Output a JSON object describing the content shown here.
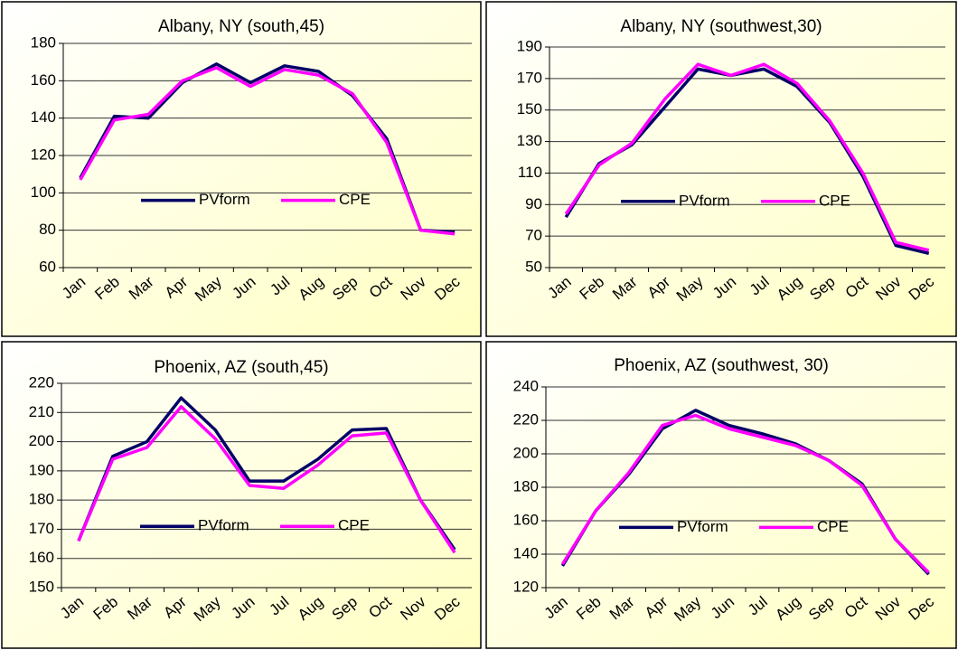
{
  "chart_data": [
    {
      "type": "line",
      "title": "Albany, NY (south,45)",
      "categories": [
        "Jan",
        "Feb",
        "Mar",
        "Apr",
        "May",
        "Jun",
        "Jul",
        "Aug",
        "Sep",
        "Oct",
        "Nov",
        "Dec"
      ],
      "series": [
        {
          "name": "PVform",
          "color": "#000066",
          "values": [
            108,
            141,
            140,
            159,
            169,
            159,
            168,
            165,
            152,
            129,
            80,
            79
          ]
        },
        {
          "name": "CPE",
          "color": "#ff00ff",
          "values": [
            107,
            139,
            142,
            160,
            167,
            157,
            166,
            163,
            153,
            127,
            80,
            78
          ]
        }
      ],
      "ylim": [
        60,
        180
      ],
      "yticks": [
        60,
        80,
        100,
        120,
        140,
        160,
        180
      ],
      "grid": true,
      "legend": "center"
    },
    {
      "type": "line",
      "title": "Albany, NY (southwest,30)",
      "categories": [
        "Jan",
        "Feb",
        "Mar",
        "Apr",
        "May",
        "Jun",
        "Jul",
        "Aug",
        "Sep",
        "Oct",
        "Nov",
        "Dec"
      ],
      "series": [
        {
          "name": "PVform",
          "color": "#000066",
          "values": [
            82,
            116,
            128,
            152,
            176,
            172,
            176,
            165,
            142,
            108,
            64,
            59
          ]
        },
        {
          "name": "CPE",
          "color": "#ff00ff",
          "values": [
            84,
            115,
            129,
            157,
            179,
            172,
            179,
            167,
            143,
            110,
            66,
            61
          ]
        }
      ],
      "ylim": [
        50,
        190
      ],
      "yticks": [
        50,
        70,
        90,
        110,
        130,
        150,
        170,
        190
      ],
      "grid": true,
      "legend": "center"
    },
    {
      "type": "line",
      "title": "Phoenix,  AZ (south,45)",
      "categories": [
        "Jan",
        "Feb",
        "Mar",
        "Apr",
        "May",
        "Jun",
        "Jul",
        "Aug",
        "Sep",
        "Oct",
        "Nov",
        "Dec"
      ],
      "series": [
        {
          "name": "PVform",
          "color": "#000066",
          "values": [
            166,
            195,
            200,
            215,
            204,
            186.5,
            186.5,
            194,
            204,
            204.5,
            180,
            163
          ]
        },
        {
          "name": "CPE",
          "color": "#ff00ff",
          "values": [
            166,
            194,
            198,
            212,
            201,
            185,
            184,
            192,
            202,
            203,
            180,
            162
          ]
        }
      ],
      "ylim": [
        150,
        220
      ],
      "yticks": [
        150,
        160,
        170,
        180,
        190,
        200,
        210,
        220
      ],
      "grid": true,
      "legend": "center"
    },
    {
      "type": "line",
      "title": "Phoenix,  AZ (southwest, 30)",
      "categories": [
        "Jan",
        "Feb",
        "Mar",
        "Apr",
        "May",
        "Jun",
        "Jul",
        "Aug",
        "Sep",
        "Oct",
        "Nov",
        "Dec"
      ],
      "series": [
        {
          "name": "PVform",
          "color": "#000066",
          "values": [
            133,
            166,
            188,
            215,
            226,
            217,
            212,
            206,
            196,
            182,
            149,
            128
          ]
        },
        {
          "name": "CPE",
          "color": "#ff00ff",
          "values": [
            134,
            166,
            189,
            217,
            223,
            215,
            210,
            205,
            196,
            181,
            149,
            129
          ]
        }
      ],
      "ylim": [
        120,
        240
      ],
      "yticks": [
        120,
        140,
        160,
        180,
        200,
        220,
        240
      ],
      "grid": true,
      "legend": "center"
    }
  ]
}
